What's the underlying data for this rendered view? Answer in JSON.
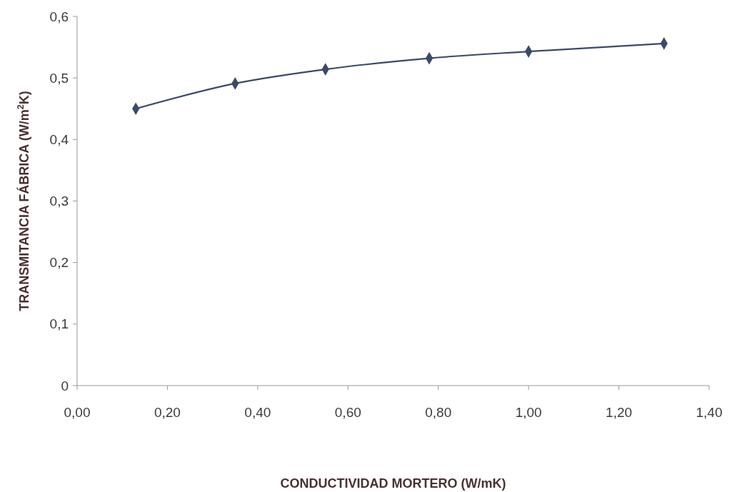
{
  "chart_data": {
    "type": "line",
    "xlabel": "CONDUCTIVIDAD MORTERO (W/mK)",
    "ylabel": "TRANSMITANCIA FÁBRICA (W/m$^{2}$K)",
    "x": [
      0.13,
      0.35,
      0.55,
      0.78,
      1.0,
      1.3
    ],
    "series": [
      {
        "color": "#3b4a68",
        "values": [
          0.45,
          0.491,
          0.514,
          0.532,
          0.543,
          0.556
        ]
      }
    ],
    "xlim": [
      0,
      1.4
    ],
    "xticks": [
      {
        "value": 0,
        "label": "0,00"
      },
      {
        "value": 0.2,
        "label": "0,20"
      },
      {
        "value": 0.4,
        "label": "0,40"
      },
      {
        "value": 0.6,
        "label": "0,60"
      },
      {
        "value": 0.8,
        "label": "0,80"
      },
      {
        "value": 1,
        "label": "1,00"
      },
      {
        "value": 1.2,
        "label": "1,20"
      },
      {
        "value": 1.4,
        "label": "1,40"
      }
    ],
    "ylim": [
      0,
      0.6
    ],
    "yticks": [
      0,
      {
        "value": 0.1,
        "label": "0,1"
      },
      {
        "value": 0.2,
        "label": "0,2"
      },
      {
        "value": 0.3,
        "label": "0,3"
      },
      {
        "value": 0.4,
        "label": "0,4"
      },
      {
        "value": 0.5,
        "label": "0,5"
      },
      {
        "value": 0.6,
        "label": "0,6"
      }
    ],
    "grid": false,
    "marker": "diamond",
    "line_style": "solid"
  }
}
